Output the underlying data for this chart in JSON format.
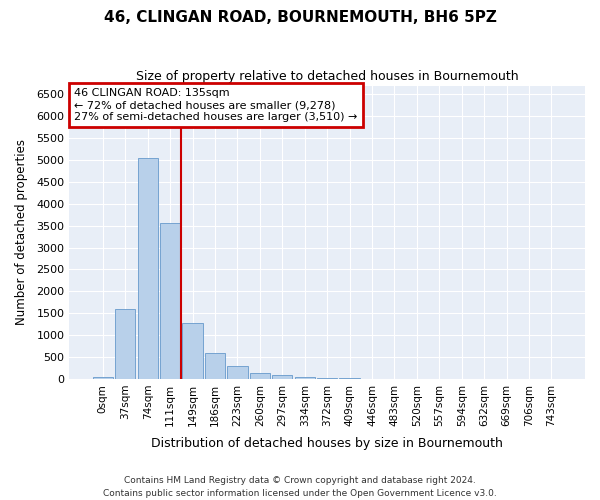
{
  "title": "46, CLINGAN ROAD, BOURNEMOUTH, BH6 5PZ",
  "subtitle": "Size of property relative to detached houses in Bournemouth",
  "xlabel": "Distribution of detached houses by size in Bournemouth",
  "ylabel": "Number of detached properties",
  "footnote1": "Contains HM Land Registry data © Crown copyright and database right 2024.",
  "footnote2": "Contains public sector information licensed under the Open Government Licence v3.0.",
  "bar_labels": [
    "0sqm",
    "37sqm",
    "74sqm",
    "111sqm",
    "149sqm",
    "186sqm",
    "223sqm",
    "260sqm",
    "297sqm",
    "334sqm",
    "372sqm",
    "409sqm",
    "446sqm",
    "483sqm",
    "520sqm",
    "557sqm",
    "594sqm",
    "632sqm",
    "669sqm",
    "706sqm",
    "743sqm"
  ],
  "bar_values": [
    50,
    1600,
    5050,
    3550,
    1270,
    600,
    300,
    130,
    80,
    50,
    30,
    10,
    5,
    3,
    2,
    1,
    1,
    0,
    0,
    0,
    0
  ],
  "bar_color": "#b8d0ea",
  "bar_edge_color": "#6699cc",
  "bg_color": "#e8eef7",
  "grid_color": "#ffffff",
  "vline_x": 3.5,
  "vline_color": "#cc0000",
  "annotation_text": "46 CLINGAN ROAD: 135sqm\n← 72% of detached houses are smaller (9,278)\n27% of semi-detached houses are larger (3,510) →",
  "annotation_box_color": "#cc0000",
  "ylim": [
    0,
    6700
  ],
  "yticks": [
    0,
    500,
    1000,
    1500,
    2000,
    2500,
    3000,
    3500,
    4000,
    4500,
    5000,
    5500,
    6000,
    6500
  ],
  "figsize": [
    6.0,
    5.0
  ],
  "dpi": 100
}
